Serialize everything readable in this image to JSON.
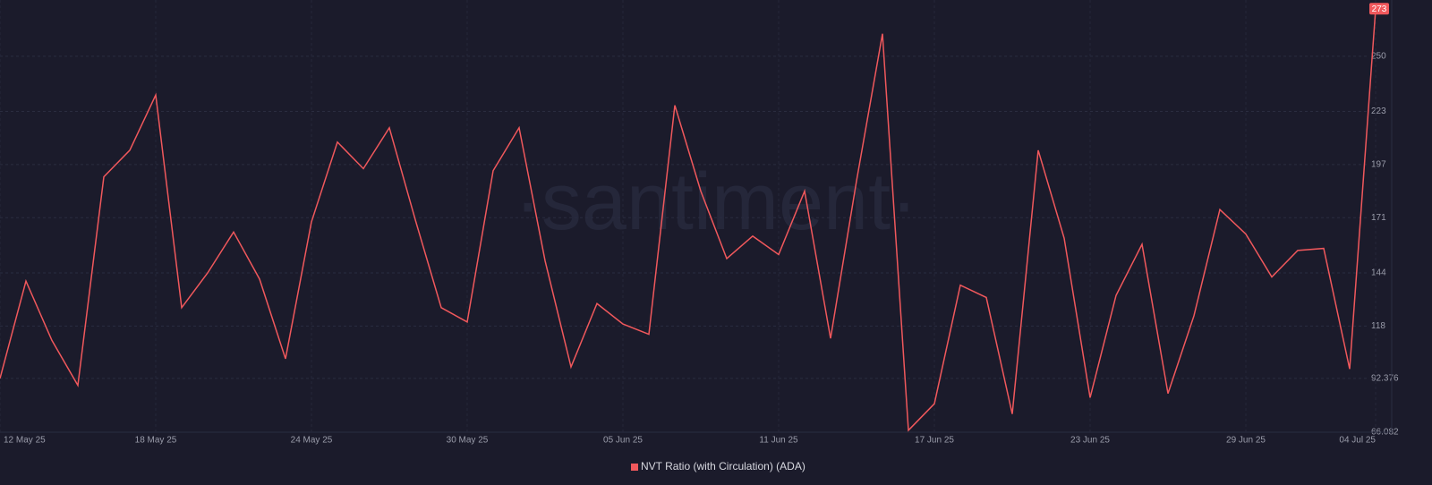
{
  "chart_data": {
    "type": "line",
    "watermark": "·santiment·",
    "categories": [
      "12 May 25",
      null,
      null,
      null,
      null,
      null,
      "18 May 25",
      null,
      null,
      null,
      null,
      null,
      "24 May 25",
      null,
      null,
      null,
      null,
      null,
      "30 May 25",
      null,
      null,
      null,
      null,
      null,
      "05 Jun 25",
      null,
      null,
      null,
      null,
      null,
      "11 Jun 25",
      null,
      null,
      null,
      null,
      null,
      "17 Jun 25",
      null,
      null,
      null,
      null,
      null,
      "23 Jun 25",
      null,
      null,
      null,
      null,
      null,
      "29 Jun 25",
      null,
      null,
      null,
      null,
      "04 Jul 25"
    ],
    "series": [
      {
        "name": "NVT Ratio (with Circulation) (ADA)",
        "color": "#f0585c",
        "values": [
          92.4,
          140,
          111,
          89,
          191,
          204,
          231,
          127,
          144,
          164,
          141,
          102,
          169,
          208,
          195,
          215,
          170,
          127,
          120,
          194,
          215,
          150,
          98,
          129,
          119,
          114,
          226,
          184,
          151,
          162,
          153,
          184,
          112,
          189,
          261,
          67,
          80,
          138,
          132,
          75,
          204,
          161,
          83,
          133,
          158,
          85,
          123,
          175,
          163,
          142,
          155,
          156,
          97,
          273
        ]
      }
    ],
    "ylim": [
      66.082,
      274
    ],
    "yticks": [
      66.082,
      92.376,
      118,
      144,
      171,
      197,
      223,
      250
    ],
    "grid": true
  }
}
